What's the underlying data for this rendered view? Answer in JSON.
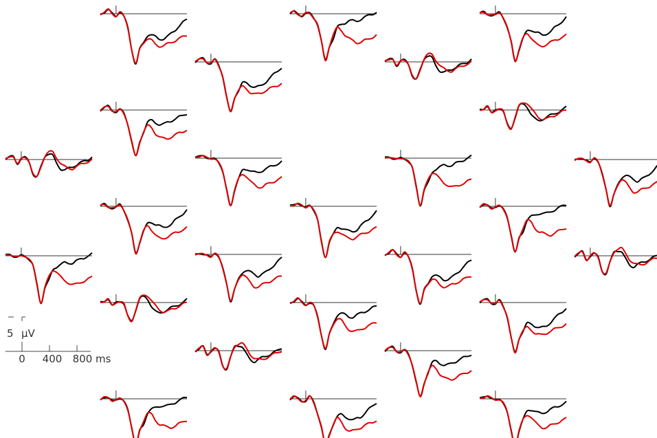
{
  "chart_data": {
    "type": "line",
    "title": "",
    "xlabel": "",
    "ylabel": "",
    "x": [
      -200,
      -150,
      -100,
      -50,
      0,
      50,
      100,
      150,
      200,
      250,
      300,
      350,
      400,
      450,
      500,
      550,
      600,
      650,
      700,
      750,
      800,
      850,
      900
    ],
    "series_colors": [
      "#000000",
      "#e00000"
    ],
    "scale_bar": {
      "amplitude_value": "5",
      "amplitude_unit": "μV",
      "time_ticks": [
        "0",
        "400",
        "800"
      ],
      "time_unit": "ms"
    },
    "panels": [
      {
        "id": "p1",
        "c1": [
          0,
          0.5,
          1,
          -1,
          0,
          0.5,
          -0.5,
          -4,
          -5,
          -2,
          1,
          1.5,
          1,
          -1,
          -2.5,
          -3,
          -2.5,
          -2,
          -1.5,
          -1,
          -0.5,
          0,
          0.8
        ],
        "c2": [
          0,
          0.5,
          1,
          -1,
          0,
          0.5,
          -0.5,
          -4,
          -5,
          -2,
          1,
          2,
          2,
          0.5,
          -1,
          -2,
          -2.5,
          -2.5,
          -2,
          -1.5,
          -1,
          -0.5,
          0
        ]
      },
      {
        "id": "p2",
        "c1": [
          0,
          0.5,
          0,
          -0.5,
          0,
          0,
          -1,
          -3,
          -8,
          -13,
          -9,
          -7,
          -4,
          -3,
          -2.5,
          -2,
          -2,
          -2,
          -1.5,
          -1,
          -0.5,
          0,
          0.5
        ],
        "c2": [
          0,
          0.5,
          0,
          -0.5,
          0,
          0,
          -1,
          -3,
          -8,
          -13,
          -9,
          -6,
          -4,
          -4.5,
          -6,
          -7,
          -7.5,
          -8,
          -8,
          -7.5,
          -7,
          -6.5,
          -6
        ]
      },
      {
        "id": "p3",
        "c1": [
          0,
          0.5,
          1,
          0,
          -0.5,
          0.5,
          -1,
          -4,
          -10,
          -14,
          -10,
          -8,
          -6,
          -6,
          -6.5,
          -7,
          -7,
          -6.5,
          -5.5,
          -4.5,
          -3.5,
          -2.5,
          -1.5
        ],
        "c2": [
          0,
          0.5,
          1,
          0,
          -0.5,
          0.5,
          -1,
          -4,
          -10,
          -14,
          -10,
          -8,
          -7,
          -7.5,
          -8.5,
          -9,
          -9,
          -8.5,
          -8,
          -7.5,
          -7,
          -6.5,
          -6
        ]
      },
      {
        "id": "p4",
        "c1": [
          0,
          0.5,
          1,
          0,
          -0.5,
          0,
          -1,
          -4,
          -9,
          -13,
          -9,
          -6,
          -3.5,
          -3,
          -3.5,
          -4,
          -4,
          -3.5,
          -3,
          -2.5,
          -2,
          -1.5,
          -1
        ],
        "c2": [
          0,
          0.5,
          1,
          0,
          -0.5,
          0,
          -1,
          -4,
          -9,
          -13,
          -9,
          -6,
          -4.5,
          -5,
          -6.5,
          -7.5,
          -8,
          -8,
          -7.5,
          -7,
          -6.5,
          -6,
          -5.5
        ]
      },
      {
        "id": "p5",
        "c1": [
          0,
          0.5,
          0,
          -0.5,
          -0.5,
          0.5,
          -1,
          -4,
          -8,
          -13,
          -10,
          -7,
          -5,
          -4.5,
          -5,
          -5.5,
          -6,
          -5.5,
          -5,
          -4,
          -3,
          -2,
          -1
        ],
        "c2": [
          0,
          0.5,
          0,
          -0.5,
          -0.5,
          0.5,
          -1,
          -4,
          -8,
          -13,
          -10,
          -7,
          -5.5,
          -6.5,
          -8,
          -9,
          -9,
          -8.5,
          -8,
          -7.5,
          -7,
          -6.5,
          -6
        ]
      }
    ],
    "layout_note_legend": ""
  }
}
